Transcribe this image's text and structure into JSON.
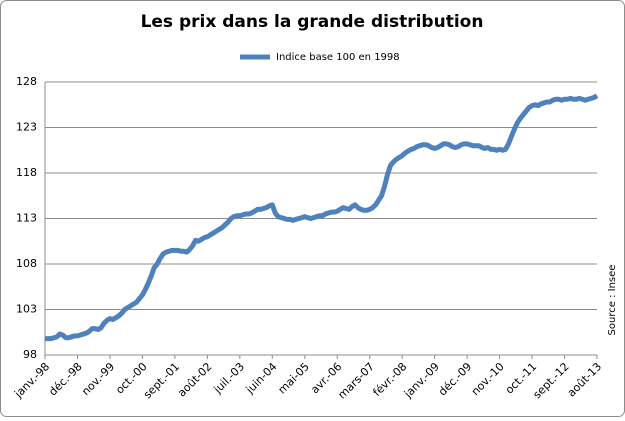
{
  "chart_data": {
    "type": "line",
    "title": "Les prix dans la grande distribution",
    "source": "Source : Insee",
    "categories": [
      "janv.-98",
      null,
      null,
      null,
      null,
      null,
      null,
      null,
      null,
      null,
      null,
      "déc.-98",
      null,
      null,
      null,
      null,
      null,
      null,
      null,
      null,
      null,
      null,
      "nov.-99",
      null,
      null,
      null,
      null,
      null,
      null,
      null,
      null,
      null,
      null,
      "oct.-00",
      null,
      null,
      null,
      null,
      null,
      null,
      null,
      null,
      null,
      null,
      "sept.-01",
      null,
      null,
      null,
      null,
      null,
      null,
      null,
      null,
      null,
      null,
      "août-02",
      null,
      null,
      null,
      null,
      null,
      null,
      null,
      null,
      null,
      null,
      "juil.-03",
      null,
      null,
      null,
      null,
      null,
      null,
      null,
      null,
      null,
      null,
      "juin-04",
      null,
      null,
      null,
      null,
      null,
      null,
      null,
      null,
      null,
      null,
      "mai-05",
      null,
      null,
      null,
      null,
      null,
      null,
      null,
      null,
      null,
      null,
      "avr.-06",
      null,
      null,
      null,
      null,
      null,
      null,
      null,
      null,
      null,
      null,
      "mars-07",
      null,
      null,
      null,
      null,
      null,
      null,
      null,
      null,
      null,
      null,
      "févr.-08",
      null,
      null,
      null,
      null,
      null,
      null,
      null,
      null,
      null,
      null,
      "janv.-09",
      null,
      null,
      null,
      null,
      null,
      null,
      null,
      null,
      null,
      null,
      "déc.-09",
      null,
      null,
      null,
      null,
      null,
      null,
      null,
      null,
      null,
      null,
      "nov.-10",
      null,
      null,
      null,
      null,
      null,
      null,
      null,
      null,
      null,
      null,
      "oct.-11",
      null,
      null,
      null,
      null,
      null,
      null,
      null,
      null,
      null,
      null,
      "sept.-12",
      null,
      null,
      null,
      null,
      null,
      null,
      null,
      null,
      null,
      null,
      "août-13"
    ],
    "series": [
      {
        "name": "Indice base 100 en 1998",
        "color": "#4f81bd",
        "values": [
          99.8,
          99.8,
          99.8,
          99.9,
          100.0,
          100.3,
          100.2,
          99.9,
          99.9,
          100.0,
          100.1,
          100.1,
          100.2,
          100.3,
          100.4,
          100.6,
          100.9,
          100.9,
          100.8,
          101.0,
          101.5,
          101.8,
          102.0,
          101.9,
          102.1,
          102.3,
          102.6,
          103.0,
          103.2,
          103.4,
          103.6,
          103.8,
          104.2,
          104.6,
          105.2,
          105.9,
          106.7,
          107.6,
          108.0,
          108.6,
          109.1,
          109.3,
          109.4,
          109.5,
          109.5,
          109.5,
          109.4,
          109.4,
          109.3,
          109.6,
          110.0,
          110.6,
          110.5,
          110.7,
          110.9,
          111.0,
          111.2,
          111.4,
          111.6,
          111.8,
          112.0,
          112.3,
          112.6,
          113.0,
          113.2,
          113.3,
          113.3,
          113.4,
          113.5,
          113.5,
          113.6,
          113.8,
          114.0,
          114.0,
          114.1,
          114.2,
          114.4,
          114.5,
          113.6,
          113.2,
          113.1,
          113.0,
          112.9,
          112.9,
          112.8,
          112.9,
          113.0,
          113.1,
          113.2,
          113.1,
          113.0,
          113.1,
          113.2,
          113.3,
          113.3,
          113.5,
          113.6,
          113.7,
          113.7,
          113.8,
          114.0,
          114.2,
          114.1,
          114.0,
          114.3,
          114.5,
          114.2,
          114.0,
          113.9,
          113.9,
          114.0,
          114.2,
          114.5,
          115.0,
          115.5,
          116.5,
          117.8,
          118.8,
          119.2,
          119.5,
          119.7,
          119.9,
          120.2,
          120.4,
          120.6,
          120.7,
          120.9,
          121.0,
          121.1,
          121.1,
          121.0,
          120.8,
          120.7,
          120.8,
          121.0,
          121.2,
          121.2,
          121.1,
          120.9,
          120.8,
          120.9,
          121.1,
          121.2,
          121.2,
          121.1,
          121.0,
          121.0,
          121.0,
          120.8,
          120.7,
          120.8,
          120.6,
          120.6,
          120.5,
          120.6,
          120.5,
          120.6,
          121.2,
          122.0,
          122.8,
          123.5,
          124.0,
          124.4,
          124.8,
          125.2,
          125.4,
          125.5,
          125.4,
          125.6,
          125.7,
          125.8,
          125.8,
          126.0,
          126.1,
          126.1,
          126.0,
          126.1,
          126.1,
          126.2,
          126.1,
          126.1,
          126.2,
          126.1,
          126.0,
          126.1,
          126.2,
          126.3,
          126.5
        ]
      }
    ],
    "ylim": [
      98,
      128
    ],
    "yticks": [
      98,
      103,
      108,
      113,
      118,
      123,
      128
    ],
    "grid": true,
    "legend": "top"
  }
}
